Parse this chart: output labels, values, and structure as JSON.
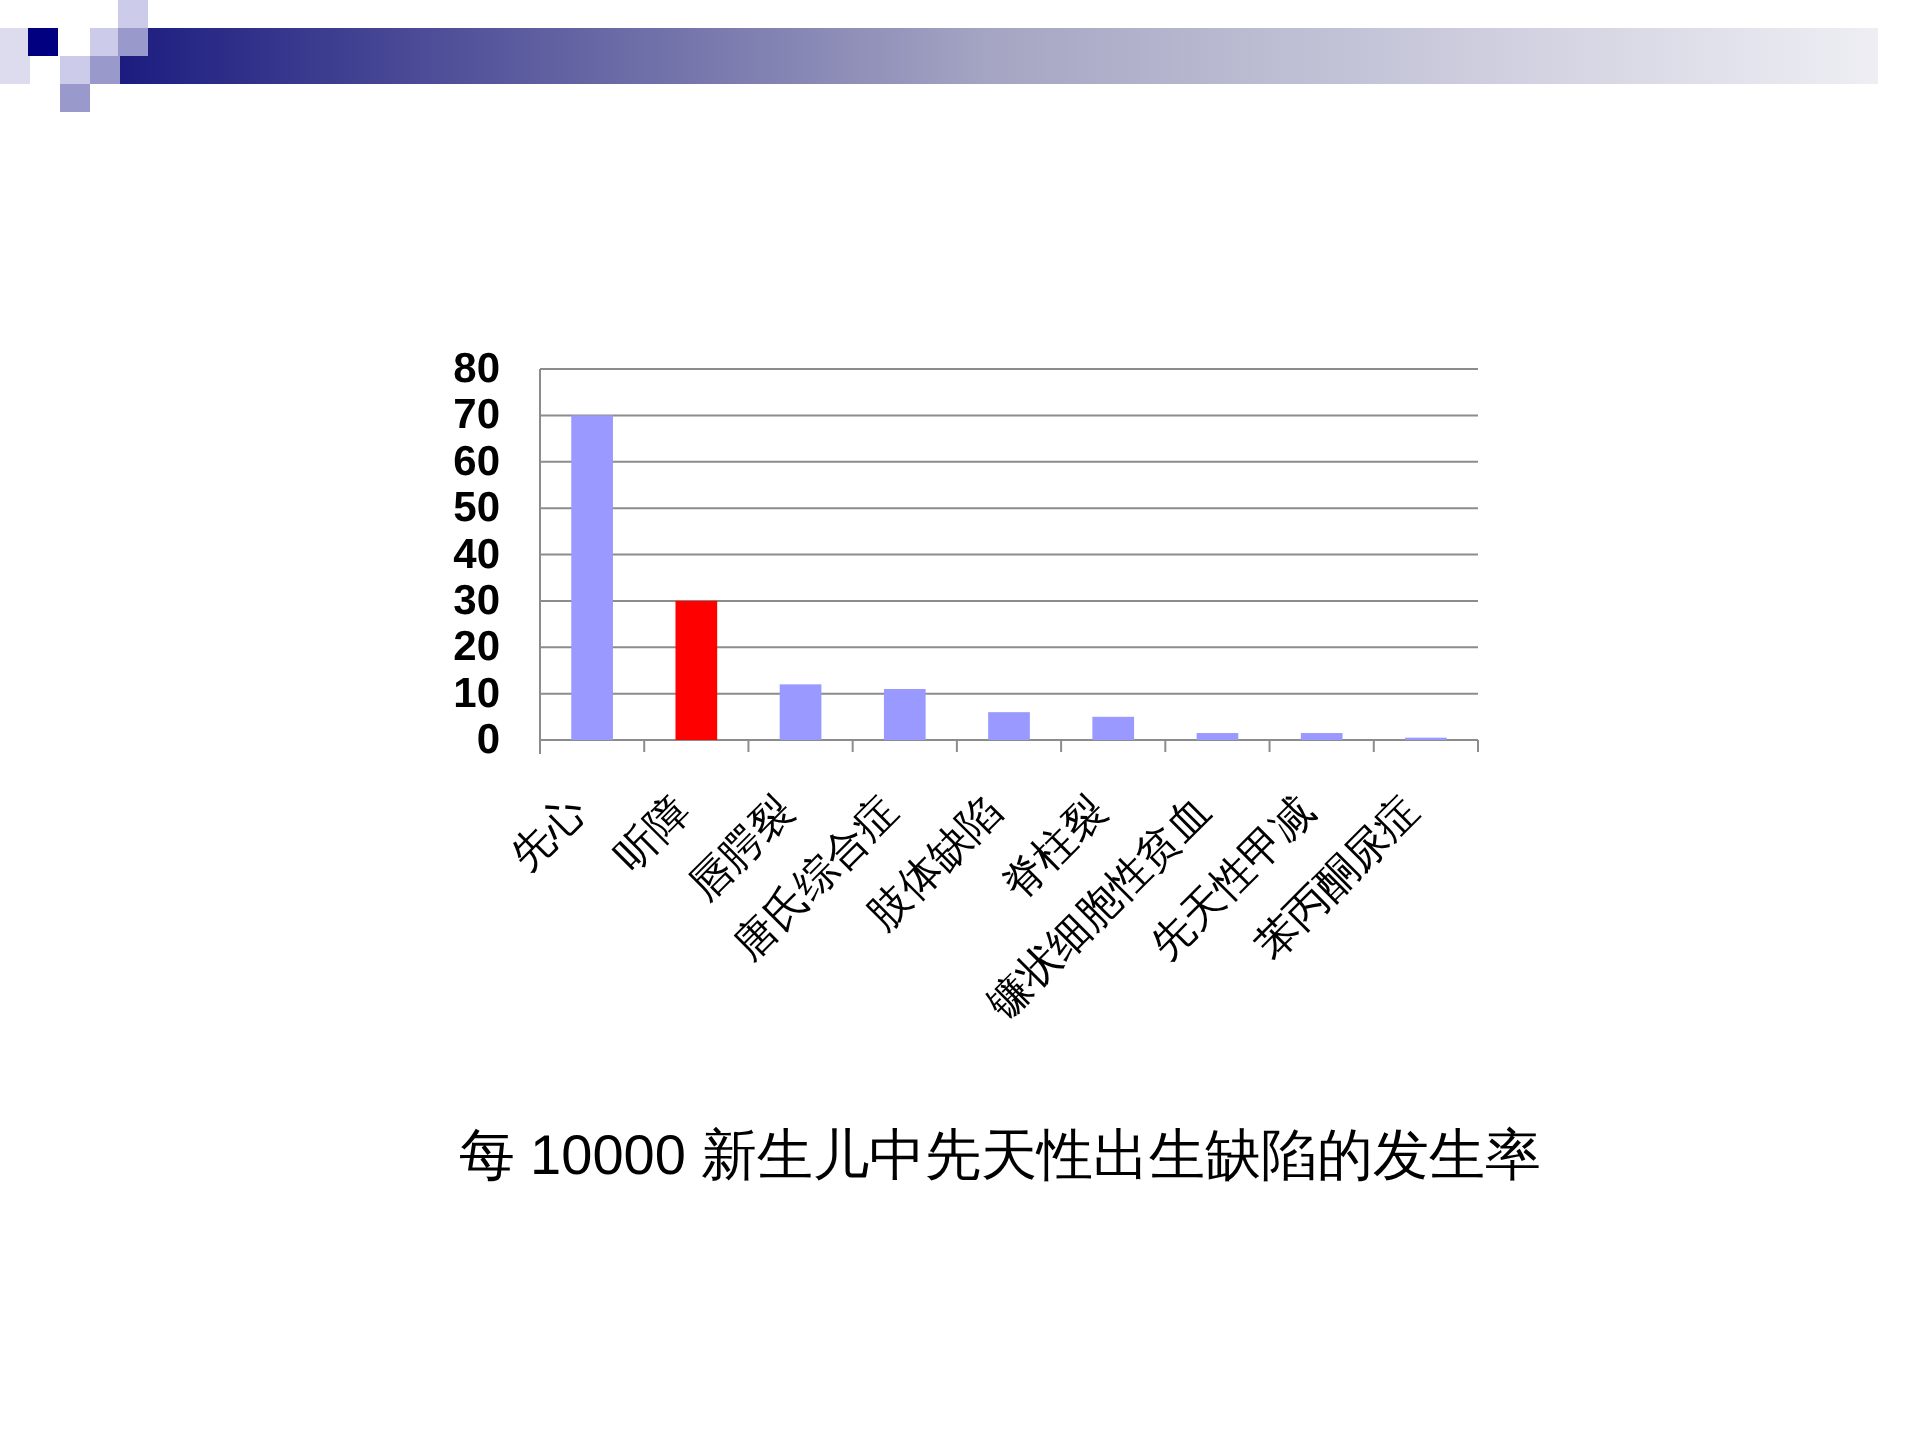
{
  "chart_data": {
    "type": "bar",
    "title": "每 10000 新生儿中先天性出生缺陷的发生率",
    "categories": [
      "先心",
      "听障",
      "唇腭裂",
      "唐氏综合症",
      "肢体缺陷",
      "脊柱裂",
      "镰状细胞性贫血",
      "先天性甲减",
      "苯丙酮尿症"
    ],
    "values": [
      70,
      30,
      12,
      11,
      6,
      5,
      1.5,
      1.5,
      0.5
    ],
    "colors": [
      "#9999ff",
      "#ff0000",
      "#9999ff",
      "#9999ff",
      "#9999ff",
      "#9999ff",
      "#9999ff",
      "#9999ff",
      "#9999ff"
    ],
    "ylim": [
      0,
      80
    ],
    "yticks": [
      0,
      10,
      20,
      30,
      40,
      50,
      60,
      70,
      80
    ],
    "grid": "y"
  }
}
